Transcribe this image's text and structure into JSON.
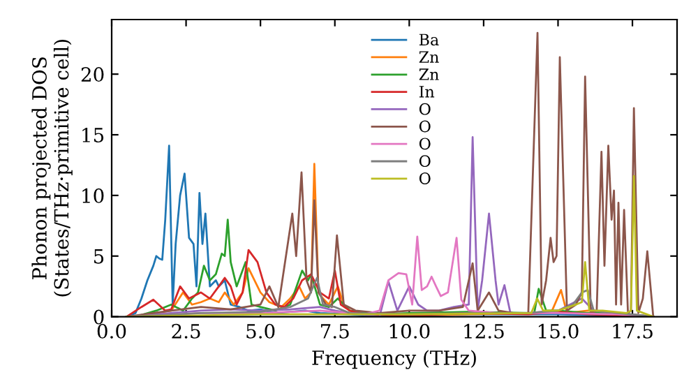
{
  "chart_data": {
    "type": "line",
    "xlabel": "Frequency (THz)",
    "ylabel": "Phonon projected DOS\n(States/THz·primitive cell)",
    "xlim": [
      0,
      19.0
    ],
    "ylim": [
      0,
      24.5
    ],
    "xticks": [
      {
        "value": 0,
        "label": "0.0"
      },
      {
        "value": 2.5,
        "label": "2.5"
      },
      {
        "value": 5,
        "label": "5.0"
      },
      {
        "value": 7.5,
        "label": "7.5"
      },
      {
        "value": 10,
        "label": "10.0"
      },
      {
        "value": 12.5,
        "label": "12.5"
      },
      {
        "value": 15,
        "label": "15.0"
      },
      {
        "value": 17.5,
        "label": "17.5"
      }
    ],
    "yticks": [
      0,
      5,
      10,
      15,
      20
    ],
    "legend": "top",
    "grid": false,
    "series": [
      {
        "name": "Ba",
        "color": "#1f77b4",
        "x": [
          0.5,
          0.8,
          1.0,
          1.2,
          1.4,
          1.5,
          1.6,
          1.7,
          1.8,
          1.93,
          2.05,
          2.15,
          2.3,
          2.45,
          2.6,
          2.75,
          2.85,
          2.95,
          3.05,
          3.15,
          3.3,
          3.5,
          3.6,
          3.8,
          4.0,
          4.3,
          4.6,
          5.0,
          5.5,
          6.0,
          6.5,
          7.0,
          8.0,
          9.0,
          12.0,
          15.0,
          18.0
        ],
        "values": [
          0,
          0.3,
          1.5,
          3,
          4.2,
          5,
          4.8,
          4.7,
          8,
          14.1,
          1,
          6,
          10,
          11.8,
          6.5,
          6,
          2.5,
          10.2,
          6,
          8.5,
          2.5,
          3,
          2.5,
          3,
          1,
          0.8,
          0.5,
          0.6,
          0.3,
          0.4,
          0.5,
          0.3,
          0.2,
          0,
          0.2,
          0.2,
          0
        ]
      },
      {
        "name": "Zn",
        "color": "#ff7f0e",
        "x": [
          0.8,
          1.5,
          2.0,
          2.4,
          2.7,
          3.0,
          3.3,
          3.6,
          3.8,
          4.1,
          4.4,
          4.6,
          5.0,
          5.3,
          5.7,
          6.0,
          6.3,
          6.5,
          6.7,
          6.81,
          6.95,
          7.1,
          7.3,
          7.6,
          7.8,
          8.0,
          8.5,
          10,
          12,
          14.3,
          14.8,
          15.1,
          15.3,
          16,
          17,
          18.2
        ],
        "values": [
          0,
          0.3,
          0.5,
          2,
          1,
          1.2,
          1.5,
          1.2,
          2,
          1,
          2,
          4,
          2,
          1.2,
          0.8,
          1.5,
          2.5,
          1.5,
          2,
          12.6,
          2,
          1.5,
          1,
          2.5,
          1,
          0.5,
          0.2,
          0.1,
          0.2,
          0.3,
          0.5,
          2.2,
          0.3,
          0.5,
          0.3,
          0
        ]
      },
      {
        "name": "Zn",
        "color": "#2ca02c",
        "x": [
          0.8,
          1.5,
          2.0,
          2.4,
          2.7,
          2.9,
          3.1,
          3.3,
          3.5,
          3.7,
          3.8,
          3.9,
          4.0,
          4.2,
          4.5,
          4.7,
          5.0,
          5.5,
          6.0,
          6.4,
          6.6,
          6.7,
          7.0,
          7.3,
          7.6,
          8.0,
          9,
          10,
          12,
          14.2,
          14.35,
          14.6,
          15,
          16,
          17,
          18.2
        ],
        "values": [
          0,
          0.5,
          1,
          0.5,
          1.5,
          2,
          4.2,
          3,
          3.5,
          5.2,
          5,
          8,
          4.5,
          2.5,
          4.5,
          1,
          0.8,
          0.5,
          1,
          3.8,
          3,
          3.5,
          1,
          0.8,
          1.5,
          0.5,
          0.2,
          0.3,
          0.4,
          0.3,
          2.3,
          0.5,
          0.5,
          0.3,
          0.3,
          0
        ]
      },
      {
        "name": "In",
        "color": "#d62728",
        "x": [
          0.5,
          1.0,
          1.4,
          1.8,
          2.0,
          2.3,
          2.6,
          3.0,
          3.3,
          3.6,
          3.8,
          4.0,
          4.2,
          4.4,
          4.6,
          4.9,
          5.2,
          5.5,
          5.8,
          6.1,
          6.4,
          6.7,
          7.0,
          7.3,
          7.5,
          7.7,
          8.0,
          8.5,
          10,
          12,
          14,
          15,
          16,
          18.2
        ],
        "values": [
          0,
          0.8,
          1.4,
          0.5,
          0.6,
          2.5,
          1.5,
          2,
          1.5,
          2.5,
          3.2,
          2.5,
          1,
          2,
          5.5,
          4.5,
          2,
          1,
          0.8,
          1.5,
          3,
          3.5,
          2,
          1.5,
          3.8,
          1,
          0.5,
          0.2,
          0.1,
          0.3,
          0.2,
          0.4,
          0.2,
          0
        ]
      },
      {
        "name": "O",
        "color": "#9467bd",
        "x": [
          0.5,
          2,
          3,
          4,
          5,
          6,
          7,
          7.5,
          8,
          9.0,
          9.3,
          9.6,
          10.0,
          10.3,
          10.6,
          11,
          11.5,
          12.0,
          12.13,
          12.3,
          12.45,
          12.68,
          12.9,
          13.0,
          13.2,
          13.4,
          14,
          15,
          15.8,
          16.2,
          17,
          18.2
        ],
        "values": [
          0,
          0.3,
          0.5,
          0.6,
          0.5,
          0.6,
          0.8,
          0.5,
          0.3,
          0,
          2.9,
          0.5,
          2.5,
          1,
          0.5,
          0.5,
          0.8,
          1,
          14.8,
          0.5,
          3,
          8.5,
          3,
          1,
          2.6,
          0.3,
          0.3,
          0.5,
          1.5,
          0.5,
          0.3,
          0
        ]
      },
      {
        "name": "O",
        "color": "#8c564b",
        "x": [
          0.5,
          2,
          3,
          4,
          5,
          5.3,
          5.6,
          6.07,
          6.2,
          6.38,
          6.55,
          6.7,
          6.81,
          6.95,
          7.2,
          7.4,
          7.57,
          7.8,
          8.2,
          9,
          10,
          11,
          11.8,
          12.13,
          12.3,
          12.68,
          13,
          13.5,
          14.0,
          14.31,
          14.45,
          14.6,
          14.75,
          14.85,
          14.95,
          15.06,
          15.3,
          15.6,
          15.8,
          15.91,
          16.1,
          16.3,
          16.46,
          16.56,
          16.69,
          16.8,
          16.88,
          16.95,
          17.03,
          17.12,
          17.22,
          17.35,
          17.45,
          17.55,
          17.7,
          17.85,
          18.0,
          18.2
        ],
        "values": [
          0,
          0.5,
          0.8,
          0.6,
          1,
          2.5,
          0.8,
          8.5,
          5,
          11.9,
          3,
          2,
          9.6,
          2,
          1,
          0.8,
          6.7,
          1,
          0.5,
          0.3,
          0.5,
          0.5,
          0.8,
          4.4,
          0.5,
          2,
          0.5,
          0.3,
          0.3,
          23.4,
          1,
          3,
          6.5,
          4.5,
          5,
          21.4,
          0.5,
          1,
          2,
          19.8,
          0.3,
          0.5,
          13.6,
          4.2,
          14.1,
          8,
          10.4,
          1,
          9.4,
          1,
          8.8,
          0.3,
          0.5,
          17.2,
          0.3,
          1.5,
          5.4,
          0
        ]
      },
      {
        "name": "O",
        "color": "#e377c2",
        "x": [
          0.5,
          3,
          5,
          7,
          8.5,
          9.0,
          9.3,
          9.64,
          9.9,
          10.1,
          10.27,
          10.42,
          10.6,
          10.75,
          10.9,
          11.06,
          11.3,
          11.59,
          11.75,
          12.0,
          13,
          15,
          17,
          18.2
        ],
        "values": [
          0,
          0.3,
          0.3,
          0.5,
          0.2,
          0.5,
          3,
          3.6,
          3.5,
          1,
          6.6,
          2.2,
          2.5,
          3.3,
          2.5,
          1.7,
          2,
          6.5,
          1.4,
          0.5,
          0.3,
          0.3,
          0.2,
          0
        ]
      },
      {
        "name": "O",
        "color": "#7f7f7f",
        "x": [
          0.5,
          3,
          5,
          6,
          6.6,
          6.9,
          7.1,
          7.5,
          8,
          10,
          12,
          14,
          15,
          15.5,
          15.8,
          16.0,
          16.2,
          17,
          18.2
        ],
        "values": [
          0,
          0.3,
          0.4,
          0.8,
          1.5,
          3.2,
          1,
          0.8,
          0.3,
          0.2,
          0.3,
          0.3,
          0.5,
          1,
          2,
          2.2,
          0.5,
          0.3,
          0
        ]
      },
      {
        "name": "O",
        "color": "#bcbd22",
        "x": [
          0.5,
          5,
          10,
          14.1,
          14.3,
          14.5,
          15,
          15.6,
          15.8,
          15.91,
          16.05,
          16.5,
          17.3,
          17.45,
          17.55,
          17.65,
          18.2
        ],
        "values": [
          0,
          0.2,
          0.2,
          0.3,
          1.5,
          0.5,
          0.5,
          1,
          1.2,
          4.5,
          0.5,
          0.5,
          0.3,
          0.5,
          11.6,
          0.5,
          0
        ]
      }
    ]
  }
}
